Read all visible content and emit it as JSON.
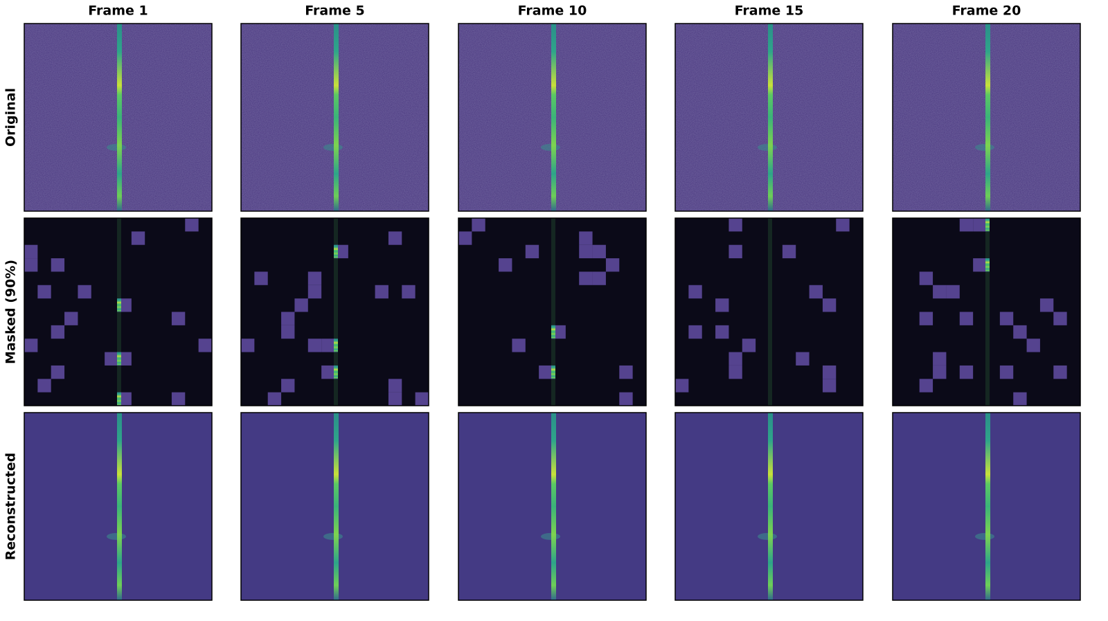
{
  "column_titles": [
    "Frame 1",
    "Frame 5",
    "Frame 10",
    "Frame 15",
    "Frame 20"
  ],
  "row_labels": [
    "Original",
    "Masked (90%)",
    "Reconstructed"
  ]
}
